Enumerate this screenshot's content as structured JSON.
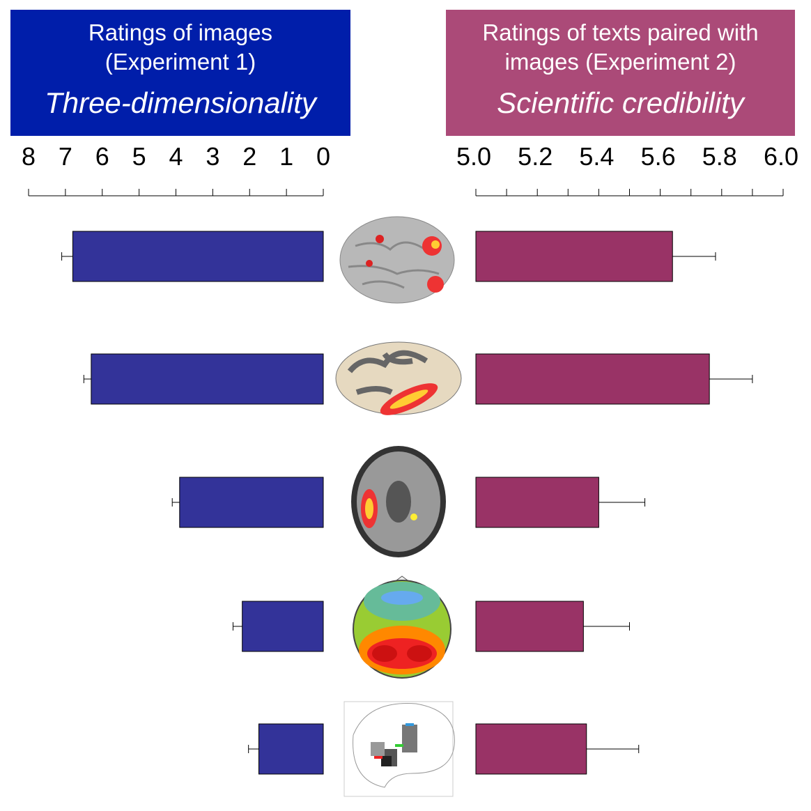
{
  "chart_data": [
    {
      "type": "bar",
      "orientation": "horizontal-reversed",
      "title": "Ratings of images (Experiment 1)",
      "subtitle": "Three-dimensionality",
      "header_color": "#001eaa",
      "bar_color": "#333399",
      "xlim": [
        0,
        8
      ],
      "tick_labels": [
        "8",
        "7",
        "6",
        "5",
        "4",
        "3",
        "2",
        "1",
        "0"
      ],
      "tick_values": [
        8,
        7,
        6,
        5,
        4,
        3,
        2,
        1,
        0
      ],
      "categories": [
        "3D brain render",
        "inflated cortex",
        "axial MRI slice",
        "EEG topography",
        "glass brain"
      ],
      "values": [
        6.8,
        6.3,
        3.9,
        2.2,
        1.75
      ],
      "error": [
        0.3,
        0.2,
        0.2,
        0.25,
        0.28
      ]
    },
    {
      "type": "bar",
      "orientation": "horizontal",
      "title": "Ratings of texts paired with images (Experiment 2)",
      "subtitle": "Scientific credibility",
      "header_color": "#ab4a78",
      "bar_color": "#993366",
      "xlim": [
        5.0,
        6.0
      ],
      "tick_labels": [
        "5.0",
        "5.2",
        "5.4",
        "5.6",
        "5.8",
        "6.0"
      ],
      "tick_values": [
        5.0,
        5.2,
        5.4,
        5.6,
        5.8,
        6.0
      ],
      "minor_ticks": [
        5.1,
        5.3,
        5.5,
        5.7,
        5.9
      ],
      "categories": [
        "3D brain render",
        "inflated cortex",
        "axial MRI slice",
        "EEG topography",
        "glass brain"
      ],
      "values": [
        5.64,
        5.76,
        5.4,
        5.35,
        5.36
      ],
      "error": [
        0.14,
        0.14,
        0.15,
        0.15,
        0.17
      ]
    }
  ],
  "headers": {
    "left_title": "Ratings of images (Experiment 1)",
    "left_subtitle": "Three-dimensionality",
    "right_title": "Ratings of texts paired with images (Experiment 2)",
    "right_subtitle": "Scientific credibility"
  }
}
